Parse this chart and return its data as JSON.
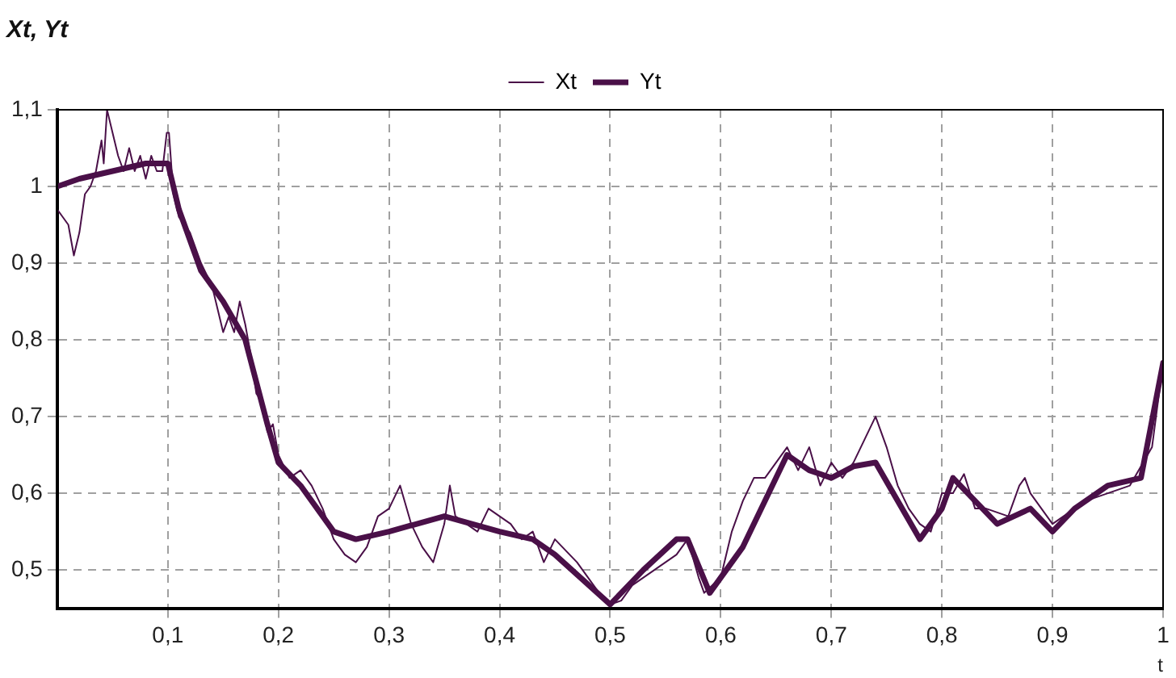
{
  "chart_data": {
    "type": "line",
    "title": "Xt, Yt",
    "xlabel": "t",
    "xlim": [
      0,
      1
    ],
    "ylim": [
      0.45,
      1.1
    ],
    "xticks": [
      {
        "value": 0.1,
        "label": "0,1"
      },
      {
        "value": 0.2,
        "label": "0,2"
      },
      {
        "value": 0.3,
        "label": "0,3"
      },
      {
        "value": 0.4,
        "label": "0,4"
      },
      {
        "value": 0.5,
        "label": "0,5"
      },
      {
        "value": 0.6,
        "label": "0,6"
      },
      {
        "value": 0.7,
        "label": "0,7"
      },
      {
        "value": 0.8,
        "label": "0,8"
      },
      {
        "value": 0.9,
        "label": "0,9"
      },
      1
    ],
    "yticks": [
      {
        "value": 0.5,
        "label": "0,5"
      },
      {
        "value": 0.6,
        "label": "0,6"
      },
      {
        "value": 0.7,
        "label": "0,7"
      },
      {
        "value": 0.8,
        "label": "0,8"
      },
      {
        "value": 0.9,
        "label": "0,9"
      },
      1,
      {
        "value": 1.1,
        "label": "1,1"
      }
    ],
    "grid": true,
    "legend": "top",
    "marker": "none",
    "line_style": "solid",
    "series": [
      {
        "name": "Xt",
        "color": "#4a1048",
        "x": [
          0,
          0.01,
          0.015,
          0.02,
          0.025,
          0.03,
          0.035,
          0.04,
          0.042,
          0.045,
          0.05,
          0.055,
          0.06,
          0.065,
          0.07,
          0.075,
          0.08,
          0.085,
          0.09,
          0.095,
          0.099,
          0.101,
          0.105,
          0.11,
          0.12,
          0.13,
          0.14,
          0.145,
          0.15,
          0.155,
          0.16,
          0.165,
          0.17,
          0.175,
          0.18,
          0.185,
          0.19,
          0.195,
          0.2,
          0.21,
          0.22,
          0.23,
          0.24,
          0.25,
          0.26,
          0.27,
          0.28,
          0.29,
          0.3,
          0.31,
          0.32,
          0.33,
          0.34,
          0.35,
          0.355,
          0.36,
          0.38,
          0.39,
          0.41,
          0.42,
          0.43,
          0.44,
          0.45,
          0.47,
          0.49,
          0.5,
          0.51,
          0.52,
          0.54,
          0.56,
          0.57,
          0.58,
          0.585,
          0.6,
          0.61,
          0.62,
          0.63,
          0.64,
          0.66,
          0.67,
          0.68,
          0.69,
          0.7,
          0.71,
          0.72,
          0.73,
          0.74,
          0.75,
          0.76,
          0.77,
          0.78,
          0.79,
          0.8,
          0.81,
          0.82,
          0.83,
          0.84,
          0.86,
          0.87,
          0.875,
          0.88,
          0.89,
          0.9,
          0.91,
          0.92,
          0.93,
          0.95,
          0.97,
          0.99,
          1
        ],
        "values": [
          0.97,
          0.95,
          0.91,
          0.94,
          0.99,
          1.0,
          1.02,
          1.06,
          1.03,
          1.1,
          1.07,
          1.04,
          1.02,
          1.05,
          1.02,
          1.04,
          1.01,
          1.04,
          1.02,
          1.02,
          1.07,
          1.07,
          0.99,
          0.96,
          0.94,
          0.9,
          0.87,
          0.84,
          0.81,
          0.83,
          0.81,
          0.85,
          0.82,
          0.78,
          0.73,
          0.72,
          0.68,
          0.69,
          0.65,
          0.62,
          0.63,
          0.61,
          0.58,
          0.54,
          0.52,
          0.51,
          0.53,
          0.57,
          0.58,
          0.61,
          0.56,
          0.53,
          0.51,
          0.56,
          0.61,
          0.57,
          0.55,
          0.58,
          0.56,
          0.54,
          0.55,
          0.51,
          0.54,
          0.51,
          0.47,
          0.455,
          0.46,
          0.48,
          0.5,
          0.52,
          0.54,
          0.49,
          0.47,
          0.49,
          0.55,
          0.59,
          0.62,
          0.62,
          0.66,
          0.63,
          0.66,
          0.61,
          0.64,
          0.62,
          0.64,
          0.67,
          0.7,
          0.66,
          0.61,
          0.58,
          0.56,
          0.55,
          0.6,
          0.6,
          0.625,
          0.58,
          0.58,
          0.57,
          0.61,
          0.62,
          0.6,
          0.58,
          0.56,
          0.57,
          0.58,
          0.59,
          0.6,
          0.61,
          0.66,
          0.77
        ]
      },
      {
        "name": "Yt",
        "color": "#4a1048",
        "x": [
          0,
          0.02,
          0.05,
          0.08,
          0.1,
          0.11,
          0.13,
          0.15,
          0.17,
          0.19,
          0.2,
          0.22,
          0.25,
          0.27,
          0.3,
          0.35,
          0.4,
          0.43,
          0.45,
          0.5,
          0.53,
          0.56,
          0.57,
          0.59,
          0.62,
          0.66,
          0.68,
          0.7,
          0.72,
          0.74,
          0.76,
          0.78,
          0.8,
          0.81,
          0.83,
          0.85,
          0.88,
          0.9,
          0.92,
          0.95,
          0.98,
          1
        ],
        "values": [
          1.0,
          1.01,
          1.02,
          1.03,
          1.03,
          0.97,
          0.89,
          0.85,
          0.8,
          0.69,
          0.64,
          0.61,
          0.55,
          0.54,
          0.55,
          0.57,
          0.55,
          0.54,
          0.52,
          0.455,
          0.5,
          0.54,
          0.54,
          0.47,
          0.53,
          0.65,
          0.63,
          0.62,
          0.635,
          0.64,
          0.59,
          0.54,
          0.58,
          0.62,
          0.59,
          0.56,
          0.58,
          0.55,
          0.58,
          0.61,
          0.62,
          0.77
        ]
      }
    ]
  }
}
